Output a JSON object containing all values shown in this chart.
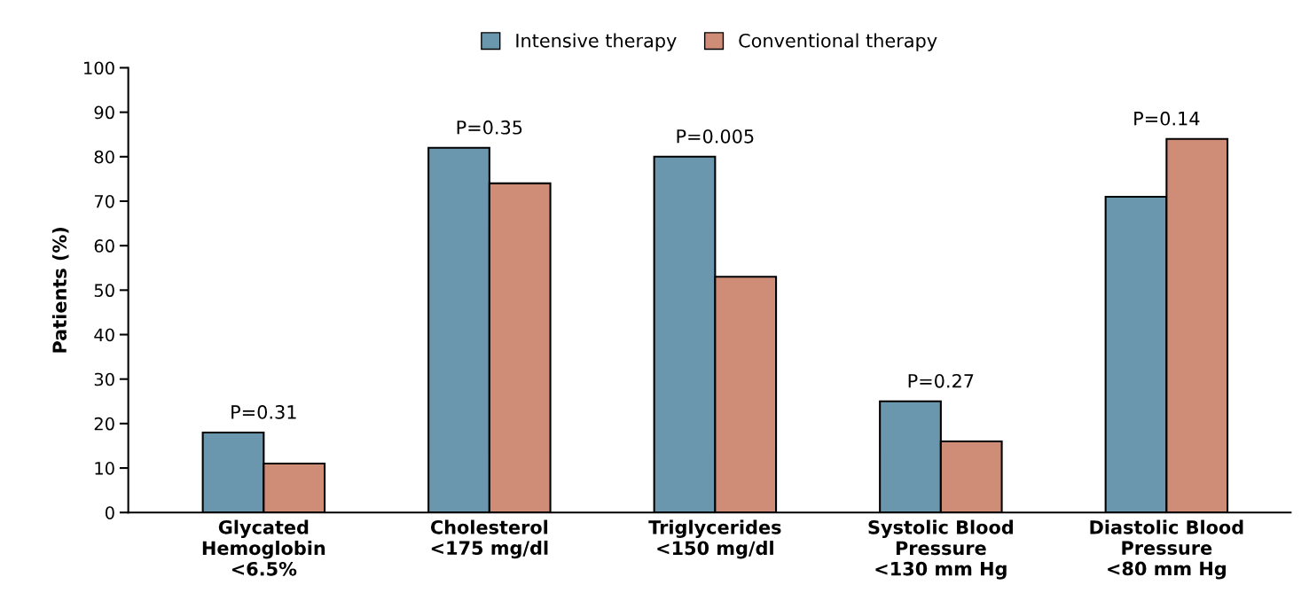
{
  "chart_data": {
    "type": "bar",
    "ylabel": "Patients (%)",
    "categories": [
      "Glycated\nHemoglobin\n<6.5%",
      "Cholesterol\n<175 mg/dl",
      "Triglycerides\n<150 mg/dl",
      "Systolic Blood\nPressure\n<130 mm Hg",
      "Diastolic Blood\nPressure\n<80 mm Hg"
    ],
    "series": [
      {
        "name": "Intensive therapy",
        "color": "#6a97ad",
        "values": [
          18,
          82,
          80,
          25,
          71
        ]
      },
      {
        "name": "Conventional therapy",
        "color": "#cf8d78",
        "values": [
          11,
          74,
          53,
          16,
          84
        ]
      }
    ],
    "ylim": [
      0,
      100
    ],
    "yticks": [
      0,
      10,
      20,
      30,
      40,
      50,
      60,
      70,
      80,
      90,
      100
    ],
    "annotations": [
      {
        "text": "P=0.31",
        "x": "Glycated\nHemoglobin\n<6.5%",
        "y": 18
      },
      {
        "text": "P=0.35",
        "x": "Cholesterol\n<175 mg/dl",
        "y": 82
      },
      {
        "text": "P=0.005",
        "x": "Triglycerides\n<150 mg/dl",
        "y": 80
      },
      {
        "text": "P=0.27",
        "x": "Systolic Blood\nPressure\n<130 mm Hg",
        "y": 25
      },
      {
        "text": "P=0.14",
        "x": "Diastolic Blood\nPressure\n<80 mm Hg",
        "y": 84
      }
    ],
    "grid": false,
    "legend": "top"
  }
}
